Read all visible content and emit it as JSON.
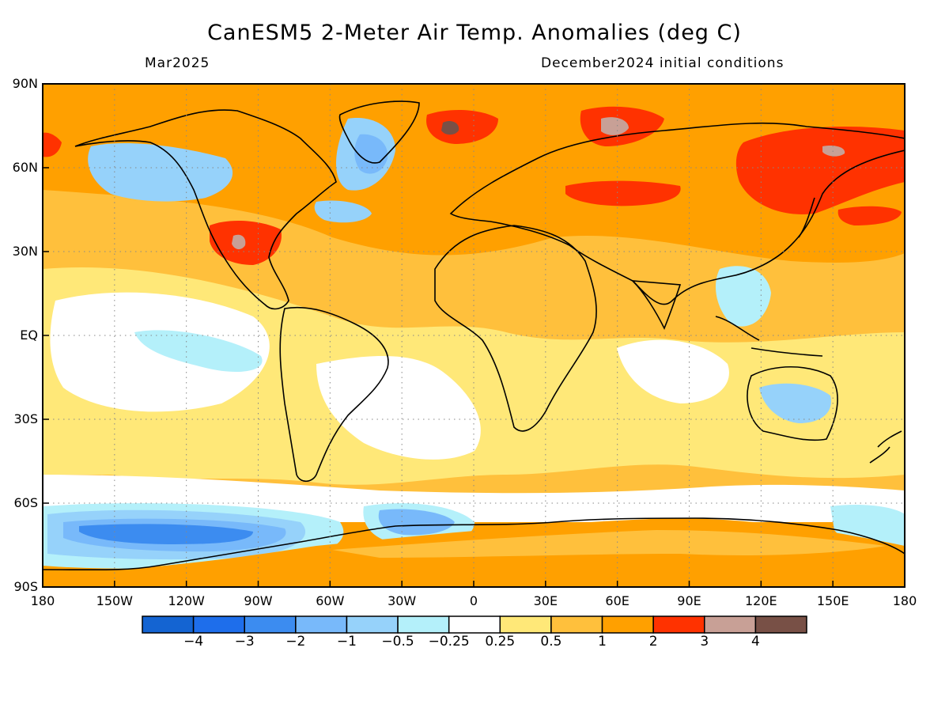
{
  "title": "CanESM5 2-Meter Air Temp. Anomalies (deg C)",
  "subtitle_left": "Mar2025",
  "subtitle_right": "December2024 initial conditions",
  "map": {
    "projection": "equirectangular",
    "lon_range": [
      -180,
      180
    ],
    "lat_range": [
      -90,
      90
    ],
    "grid_dotted": true,
    "lat_labels": [
      "90N",
      "60N",
      "30N",
      "EQ",
      "30S",
      "60S",
      "90S"
    ],
    "lon_labels": [
      "180",
      "150W",
      "120W",
      "90W",
      "60W",
      "30W",
      "0",
      "30E",
      "60E",
      "90E",
      "120E",
      "150E",
      "180"
    ]
  },
  "colorbar": {
    "colors": [
      "#1464d2",
      "#1e6eeb",
      "#3c8cf0",
      "#78b9fa",
      "#96d2fa",
      "#b4f0fa",
      "#ffffff",
      "#ffe878",
      "#ffc03c",
      "#ffa000",
      "#ff3200",
      "#c8a096",
      "#785046"
    ],
    "labels": [
      "−4",
      "−3",
      "−2",
      "−1",
      "−0.5",
      "−0.25",
      "0.25",
      "0.5",
      "1",
      "2",
      "3",
      "4"
    ]
  }
}
